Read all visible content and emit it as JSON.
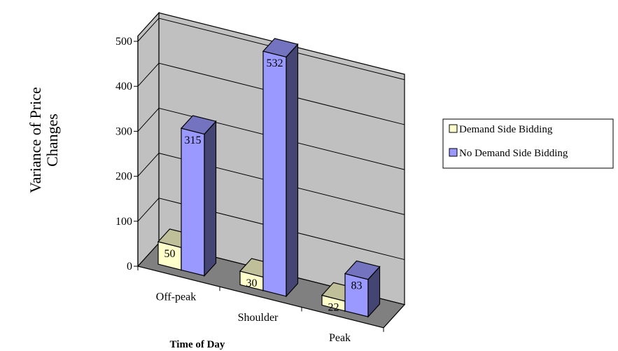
{
  "chart_data": {
    "type": "bar",
    "style": "3d-clustered-column",
    "xlabel": "Time of Day",
    "ylabel": "Variance of Price Changes",
    "ylabel_lines": [
      "Variance of Price",
      "Changes"
    ],
    "categories": [
      "Off-peak",
      "Shoulder",
      "Peak"
    ],
    "series": [
      {
        "name": "Demand Side Bidding",
        "values": [
          50,
          30,
          22
        ],
        "color": "#ffffcc"
      },
      {
        "name": "No Demand Side Bidding",
        "values": [
          315,
          532,
          83
        ],
        "color": "#9999ff"
      }
    ],
    "ylim": [
      0,
      500
    ],
    "yticks": [
      0,
      100,
      200,
      300,
      400,
      500
    ],
    "grid": true,
    "wall_color": "#c0c0c0",
    "floor_color": "#808080",
    "data_labels": true,
    "legend_position": "right"
  }
}
